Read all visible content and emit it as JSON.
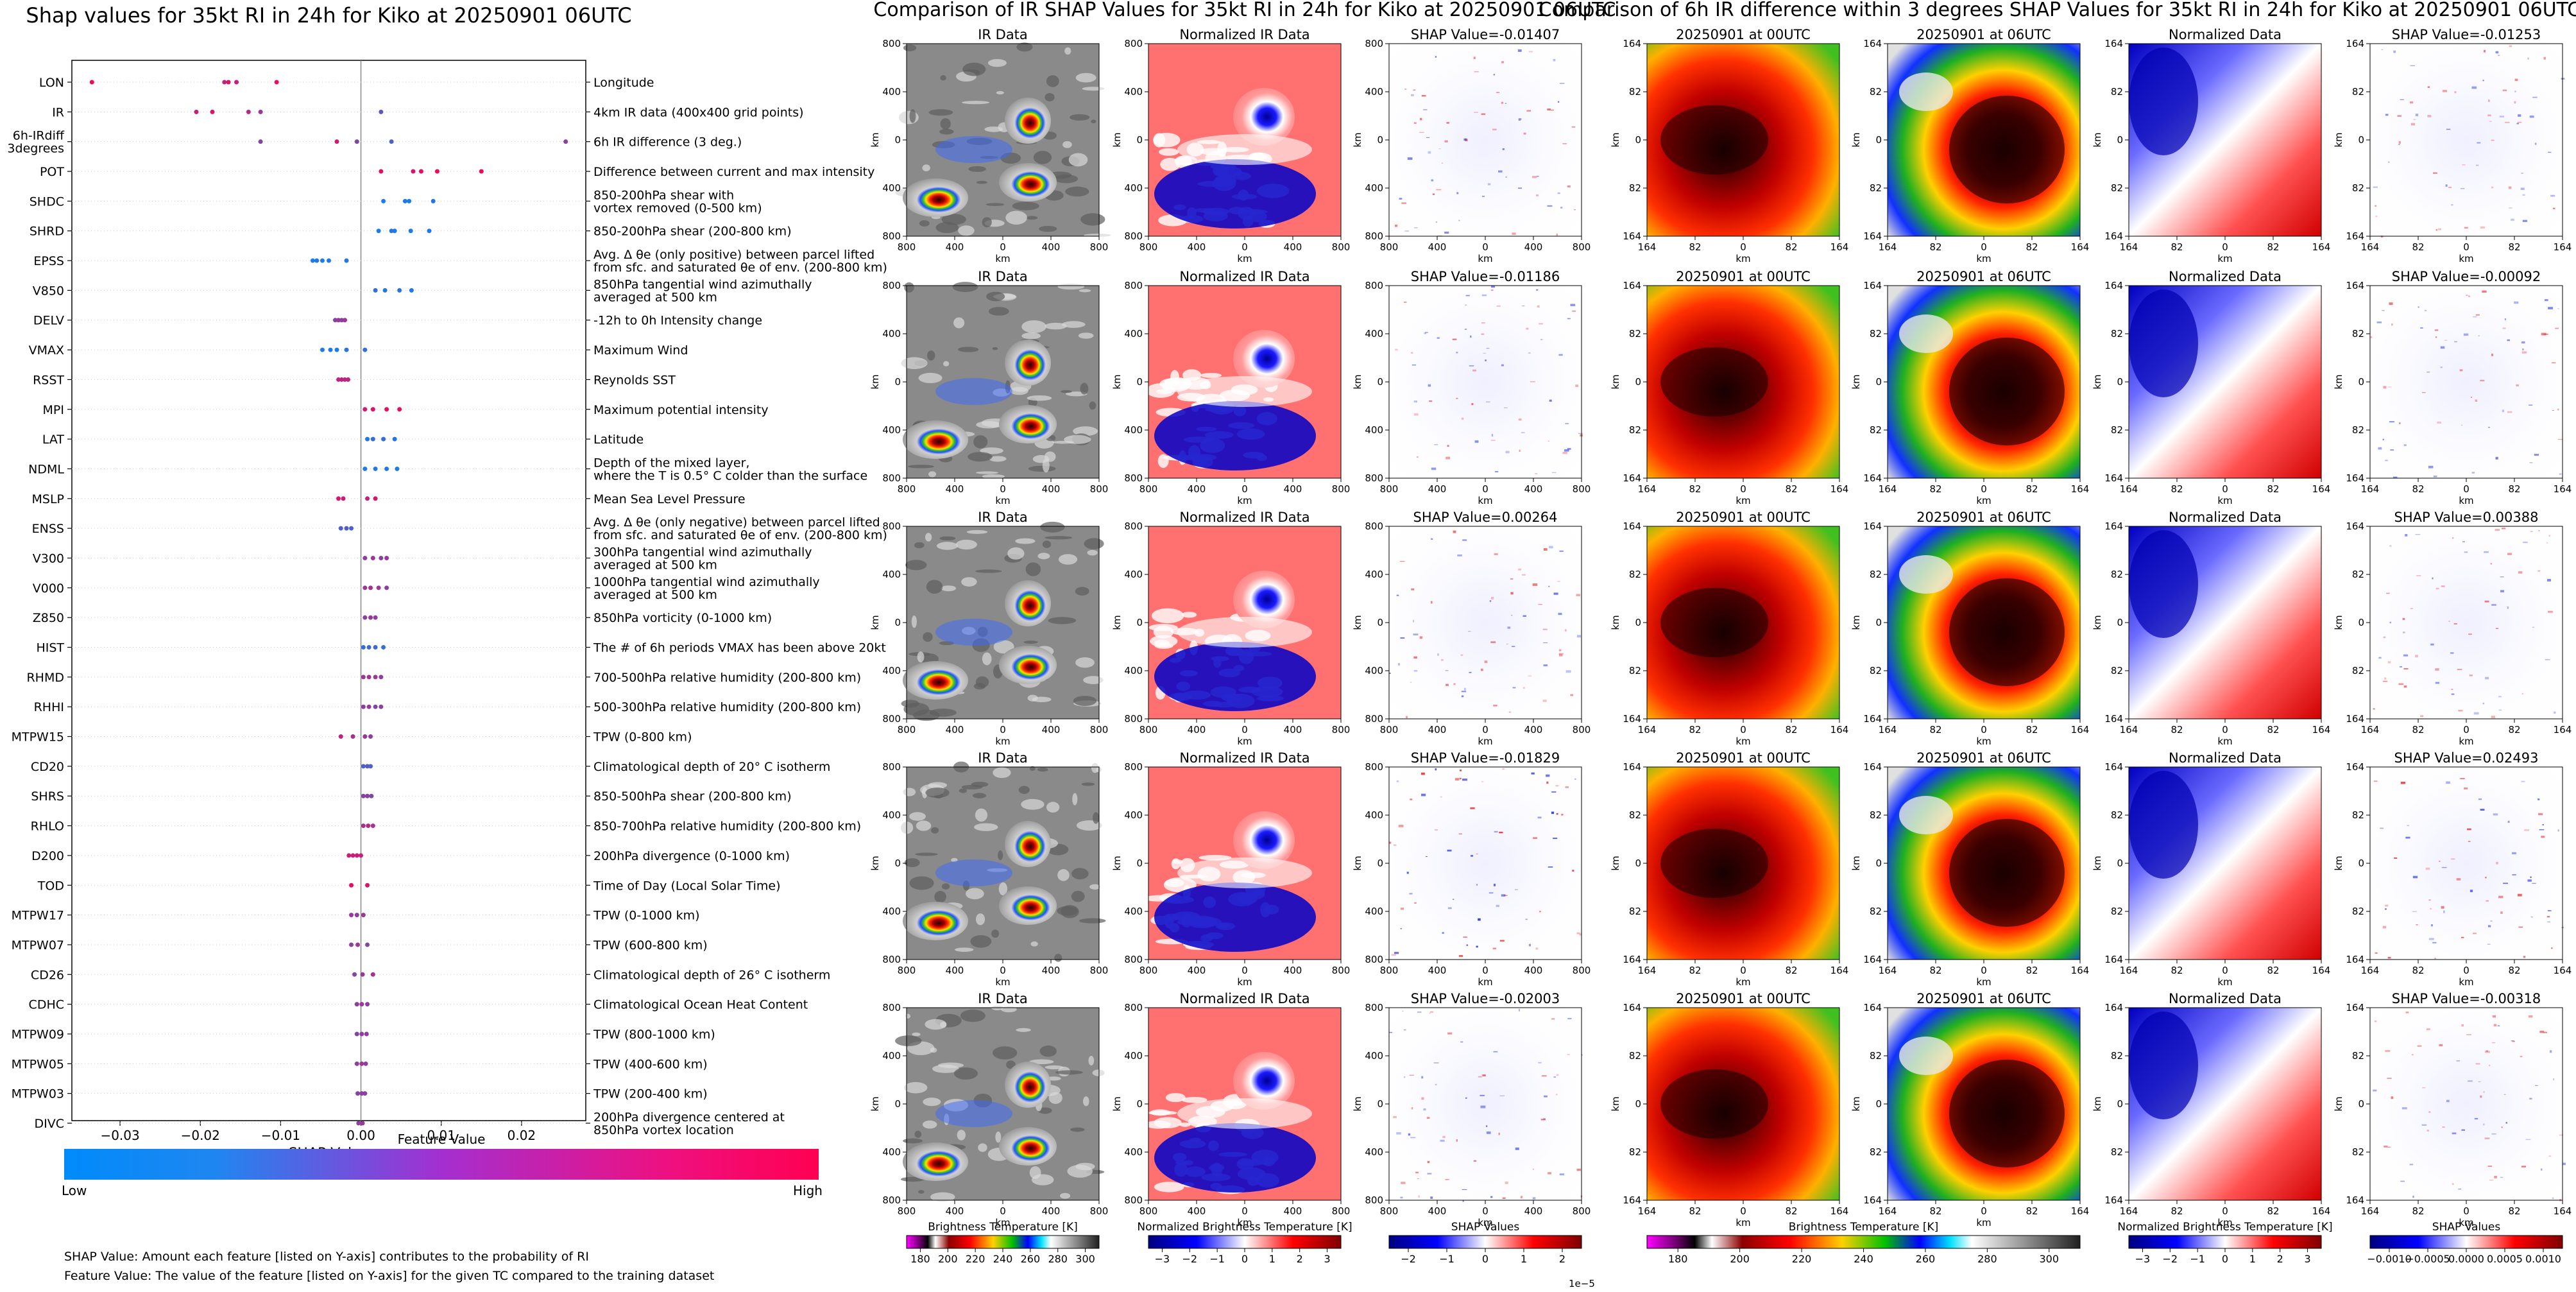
{
  "beeswarm": {
    "title": "Shap values for 35kt RI in 24h for Kiko at 20250901 06UTC",
    "xlabel": "SHAP Value",
    "xticks": [
      -0.03,
      -0.02,
      -0.01,
      0.0,
      0.01,
      0.02
    ],
    "xtick_labels": [
      "−0.03",
      "−0.02",
      "−0.01",
      "0.00",
      "0.01",
      "0.02"
    ],
    "xlim": [
      -0.036,
      0.028
    ],
    "colorbar_title": "Feature Value",
    "colorbar_low": "Low",
    "colorbar_high": "High",
    "colorbar_colors": [
      "#008bfb",
      "#ff0052"
    ],
    "note1": "SHAP Value: Amount each feature [listed on Y-axis] contributes to the probability of RI",
    "note2": "Feature Value: The value of the feature [listed on Y-axis] for the given TC compared to the training dataset",
    "features": [
      {
        "name": "LON",
        "desc": "Longitude",
        "points": [
          [
            -0.0335,
            0.9
          ],
          [
            -0.017,
            0.75
          ],
          [
            -0.0165,
            0.85
          ],
          [
            -0.0155,
            0.8
          ],
          [
            -0.0105,
            0.9
          ]
        ]
      },
      {
        "name": "IR",
        "desc": "4km IR data (400x400 grid points)",
        "points": [
          [
            -0.0205,
            0.8
          ],
          [
            -0.0185,
            0.85
          ],
          [
            -0.014,
            0.7
          ],
          [
            -0.0125,
            0.6
          ],
          [
            0.0025,
            0.35
          ]
        ]
      },
      {
        "name": "6h-IRdiff\n3degrees",
        "desc": "6h IR difference (3 deg.)",
        "points": [
          [
            -0.0125,
            0.5
          ],
          [
            -0.003,
            0.8
          ],
          [
            -0.0005,
            0.5
          ],
          [
            0.0038,
            0.3
          ],
          [
            0.0255,
            0.55
          ]
        ]
      },
      {
        "name": "POT",
        "desc": "Difference between current and max intensity",
        "points": [
          [
            0.0025,
            0.9
          ],
          [
            0.0065,
            0.85
          ],
          [
            0.0075,
            0.9
          ],
          [
            0.0095,
            0.95
          ],
          [
            0.015,
            0.95
          ]
        ]
      },
      {
        "name": "SHDC",
        "desc": "850-200hPa shear with\nvortex removed (0-500 km)",
        "points": [
          [
            0.0028,
            0.1
          ],
          [
            0.0055,
            0.12
          ],
          [
            0.006,
            0.1
          ],
          [
            0.009,
            0.15
          ]
        ]
      },
      {
        "name": "SHRD",
        "desc": "850-200hPa shear (200-800 km)",
        "points": [
          [
            0.0022,
            0.1
          ],
          [
            0.0038,
            0.15
          ],
          [
            0.0042,
            0.12
          ],
          [
            0.0062,
            0.1
          ],
          [
            0.0085,
            0.12
          ]
        ]
      },
      {
        "name": "EPSS",
        "desc": "Avg. Δ θe (only positive) between parcel lifted\nfrom sfc. and saturated θe of env. (200-800 km)",
        "points": [
          [
            -0.006,
            0.1
          ],
          [
            -0.0055,
            0.12
          ],
          [
            -0.0048,
            0.1
          ],
          [
            -0.004,
            0.12
          ],
          [
            -0.0018,
            0.15
          ]
        ]
      },
      {
        "name": "V850",
        "desc": "850hPa tangential wind azimuthally\naveraged at 500 km",
        "points": [
          [
            0.0018,
            0.2
          ],
          [
            0.003,
            0.15
          ],
          [
            0.0048,
            0.18
          ],
          [
            0.0063,
            0.12
          ]
        ]
      },
      {
        "name": "DELV",
        "desc": "-12h to 0h Intensity change",
        "points": [
          [
            -0.0032,
            0.55
          ],
          [
            -0.0028,
            0.6
          ],
          [
            -0.0024,
            0.55
          ],
          [
            -0.002,
            0.6
          ]
        ]
      },
      {
        "name": "VMAX",
        "desc": "Maximum Wind",
        "points": [
          [
            -0.0048,
            0.1
          ],
          [
            -0.0038,
            0.12
          ],
          [
            -0.003,
            0.1
          ],
          [
            -0.0018,
            0.15
          ],
          [
            0.0005,
            0.2
          ]
        ]
      },
      {
        "name": "RSST",
        "desc": "Reynolds SST",
        "points": [
          [
            -0.0028,
            0.7
          ],
          [
            -0.0024,
            0.75
          ],
          [
            -0.002,
            0.7
          ],
          [
            -0.0016,
            0.75
          ]
        ]
      },
      {
        "name": "MPI",
        "desc": "Maximum potential intensity",
        "points": [
          [
            0.0005,
            0.8
          ],
          [
            0.0015,
            0.85
          ],
          [
            0.0032,
            0.9
          ],
          [
            0.0048,
            0.9
          ]
        ]
      },
      {
        "name": "LAT",
        "desc": "Latitude",
        "points": [
          [
            0.0008,
            0.15
          ],
          [
            0.0015,
            0.2
          ],
          [
            0.0028,
            0.2
          ],
          [
            0.0042,
            0.15
          ]
        ]
      },
      {
        "name": "NDML",
        "desc": "Depth of the mixed layer,\nwhere the T is 0.5° C colder than the surface",
        "points": [
          [
            0.0005,
            0.1
          ],
          [
            0.0018,
            0.15
          ],
          [
            0.0032,
            0.12
          ],
          [
            0.0045,
            0.1
          ]
        ]
      },
      {
        "name": "MSLP",
        "desc": "Mean Sea Level Pressure",
        "points": [
          [
            -0.0028,
            0.85
          ],
          [
            -0.0022,
            0.8
          ],
          [
            0.0008,
            0.75
          ],
          [
            0.0018,
            0.85
          ]
        ]
      },
      {
        "name": "ENSS",
        "desc": "Avg. Δ θe (only negative) between parcel lifted\nfrom sfc. and saturated θe of env. (200-800 km)",
        "points": [
          [
            -0.0025,
            0.3
          ],
          [
            -0.0018,
            0.35
          ],
          [
            -0.0012,
            0.3
          ]
        ]
      },
      {
        "name": "V300",
        "desc": "300hPa tangential wind azimuthally\naveraged at 500 km",
        "points": [
          [
            0.0005,
            0.55
          ],
          [
            0.0015,
            0.6
          ],
          [
            0.0025,
            0.55
          ],
          [
            0.0032,
            0.6
          ]
        ]
      },
      {
        "name": "V000",
        "desc": "1000hPa tangential wind azimuthally\naveraged at 500 km",
        "points": [
          [
            0.0005,
            0.6
          ],
          [
            0.0012,
            0.65
          ],
          [
            0.0022,
            0.6
          ],
          [
            0.0032,
            0.55
          ]
        ]
      },
      {
        "name": "Z850",
        "desc": "850hPa vorticity (0-1000 km)",
        "points": [
          [
            0.0005,
            0.55
          ],
          [
            0.0012,
            0.6
          ],
          [
            0.0018,
            0.55
          ]
        ]
      },
      {
        "name": "HIST",
        "desc": "The # of 6h periods VMAX has been above 20kt",
        "points": [
          [
            0.0003,
            0.2
          ],
          [
            0.001,
            0.25
          ],
          [
            0.0018,
            0.25
          ],
          [
            0.0028,
            0.2
          ]
        ]
      },
      {
        "name": "RHMD",
        "desc": "700-500hPa relative humidity (200-800 km)",
        "points": [
          [
            0.0003,
            0.6
          ],
          [
            0.001,
            0.65
          ],
          [
            0.0018,
            0.6
          ],
          [
            0.0025,
            0.55
          ]
        ]
      },
      {
        "name": "RHHI",
        "desc": "500-300hPa relative humidity (200-800 km)",
        "points": [
          [
            0.0003,
            0.55
          ],
          [
            0.001,
            0.6
          ],
          [
            0.0018,
            0.5
          ],
          [
            0.0025,
            0.55
          ]
        ]
      },
      {
        "name": "MTPW15",
        "desc": "TPW (0-800 km)",
        "points": [
          [
            -0.0025,
            0.75
          ],
          [
            -0.001,
            0.65
          ],
          [
            0.0005,
            0.6
          ],
          [
            0.0012,
            0.55
          ]
        ]
      },
      {
        "name": "CD20",
        "desc": "Climatological depth of 20° C isotherm",
        "points": [
          [
            0.0003,
            0.3
          ],
          [
            0.0008,
            0.35
          ],
          [
            0.0012,
            0.3
          ]
        ]
      },
      {
        "name": "SHRS",
        "desc": "850-500hPa shear (200-800 km)",
        "points": [
          [
            0.0003,
            0.5
          ],
          [
            0.0008,
            0.55
          ],
          [
            0.0013,
            0.5
          ]
        ]
      },
      {
        "name": "RHLO",
        "desc": "850-700hPa relative humidity (200-800 km)",
        "points": [
          [
            0.0003,
            0.65
          ],
          [
            0.0009,
            0.7
          ],
          [
            0.0015,
            0.65
          ]
        ]
      },
      {
        "name": "D200",
        "desc": "200hPa divergence (0-1000 km)",
        "points": [
          [
            -0.0015,
            0.8
          ],
          [
            -0.001,
            0.75
          ],
          [
            -0.0005,
            0.8
          ],
          [
            0.0,
            0.75
          ]
        ]
      },
      {
        "name": "TOD",
        "desc": "Time of Day (Local Solar Time)",
        "points": [
          [
            -0.0012,
            0.9
          ],
          [
            0.0008,
            0.85
          ]
        ]
      },
      {
        "name": "MTPW17",
        "desc": "TPW (0-1000 km)",
        "points": [
          [
            -0.0012,
            0.6
          ],
          [
            -0.0005,
            0.55
          ],
          [
            0.0003,
            0.6
          ]
        ]
      },
      {
        "name": "MTPW07",
        "desc": "TPW (600-800 km)",
        "points": [
          [
            -0.0012,
            0.55
          ],
          [
            -0.0004,
            0.6
          ],
          [
            0.0008,
            0.5
          ]
        ]
      },
      {
        "name": "CD26",
        "desc": "Climatological depth of 26° C isotherm",
        "points": [
          [
            -0.0008,
            0.5
          ],
          [
            0.0002,
            0.6
          ],
          [
            0.0015,
            0.65
          ]
        ]
      },
      {
        "name": "CDHC",
        "desc": "Climatological Ocean Heat Content",
        "points": [
          [
            -0.0005,
            0.55
          ],
          [
            0.0001,
            0.6
          ],
          [
            0.0008,
            0.55
          ]
        ]
      },
      {
        "name": "MTPW09",
        "desc": "TPW (800-1000 km)",
        "points": [
          [
            -0.0005,
            0.5
          ],
          [
            0.0001,
            0.55
          ],
          [
            0.0007,
            0.55
          ]
        ]
      },
      {
        "name": "MTPW05",
        "desc": "TPW (400-600 km)",
        "points": [
          [
            -0.0005,
            0.55
          ],
          [
            0.0001,
            0.6
          ],
          [
            0.0006,
            0.55
          ]
        ]
      },
      {
        "name": "MTPW03",
        "desc": "TPW (200-400 km)",
        "points": [
          [
            -0.0004,
            0.5
          ],
          [
            0.0001,
            0.55
          ],
          [
            0.0005,
            0.5
          ]
        ]
      },
      {
        "name": "DIVC",
        "desc": "200hPa divergence centered at\n850hPa vortex location",
        "points": [
          [
            -0.0003,
            0.55
          ],
          [
            0.0002,
            0.6
          ]
        ]
      }
    ]
  },
  "ir_panel": {
    "title": "Comparison of IR SHAP Values for 35kt RI in 24h for Kiko at 20250901 06UTC",
    "col_titles": [
      "IR Data",
      "Normalized IR Data"
    ],
    "shap_titles": [
      "SHAP Value=-0.01407",
      "SHAP Value=-0.01186",
      "SHAP Value=0.00264",
      "SHAP Value=-0.01829",
      "SHAP Value=-0.02003"
    ],
    "axis_label": "km",
    "ticks": [
      "800",
      "400",
      "0",
      "400",
      "800"
    ],
    "cbar_ir_label": "Brightness Temperature [K]",
    "cbar_ir_ticks": [
      "180",
      "200",
      "220",
      "240",
      "260",
      "280",
      "300"
    ],
    "cbar_norm_label": "Normalized Brightness Temperature [K]",
    "cbar_norm_ticks": [
      "−3",
      "−2",
      "−1",
      "0",
      "1",
      "2",
      "3"
    ],
    "cbar_shap_label": "SHAP Values",
    "cbar_shap_ticks": [
      "−2",
      "−1",
      "0",
      "1",
      "2"
    ],
    "cbar_shap_exp": "1e−5"
  },
  "diff_panel": {
    "title": "Comparison of 6h IR difference within 3 degrees SHAP Values for 35kt RI in 24h for Kiko at 20250901 06UTC",
    "col_titles": [
      "20250901 at 00UTC",
      "20250901 at 06UTC",
      "Normalized Data"
    ],
    "shap_titles": [
      "SHAP Value=-0.01253",
      "SHAP Value=-0.00092",
      "SHAP Value=0.00388",
      "SHAP Value=0.02493",
      "SHAP Value=-0.00318"
    ],
    "axis_label": "km",
    "ticks": [
      "164",
      "82",
      "0",
      "82",
      "164"
    ],
    "cbar_ir_label": "Brightness Temperature [K]",
    "cbar_ir_ticks": [
      "180",
      "200",
      "220",
      "240",
      "260",
      "280",
      "300"
    ],
    "cbar_norm_label": "Normalized Brightness Temperature [K]",
    "cbar_norm_ticks": [
      "−3",
      "−2",
      "−1",
      "0",
      "1",
      "2",
      "3"
    ],
    "cbar_shap_label": "SHAP Values",
    "cbar_shap_ticks": [
      "−0.0010",
      "−0.0005",
      "0.0000",
      "0.0005",
      "0.0010"
    ]
  }
}
